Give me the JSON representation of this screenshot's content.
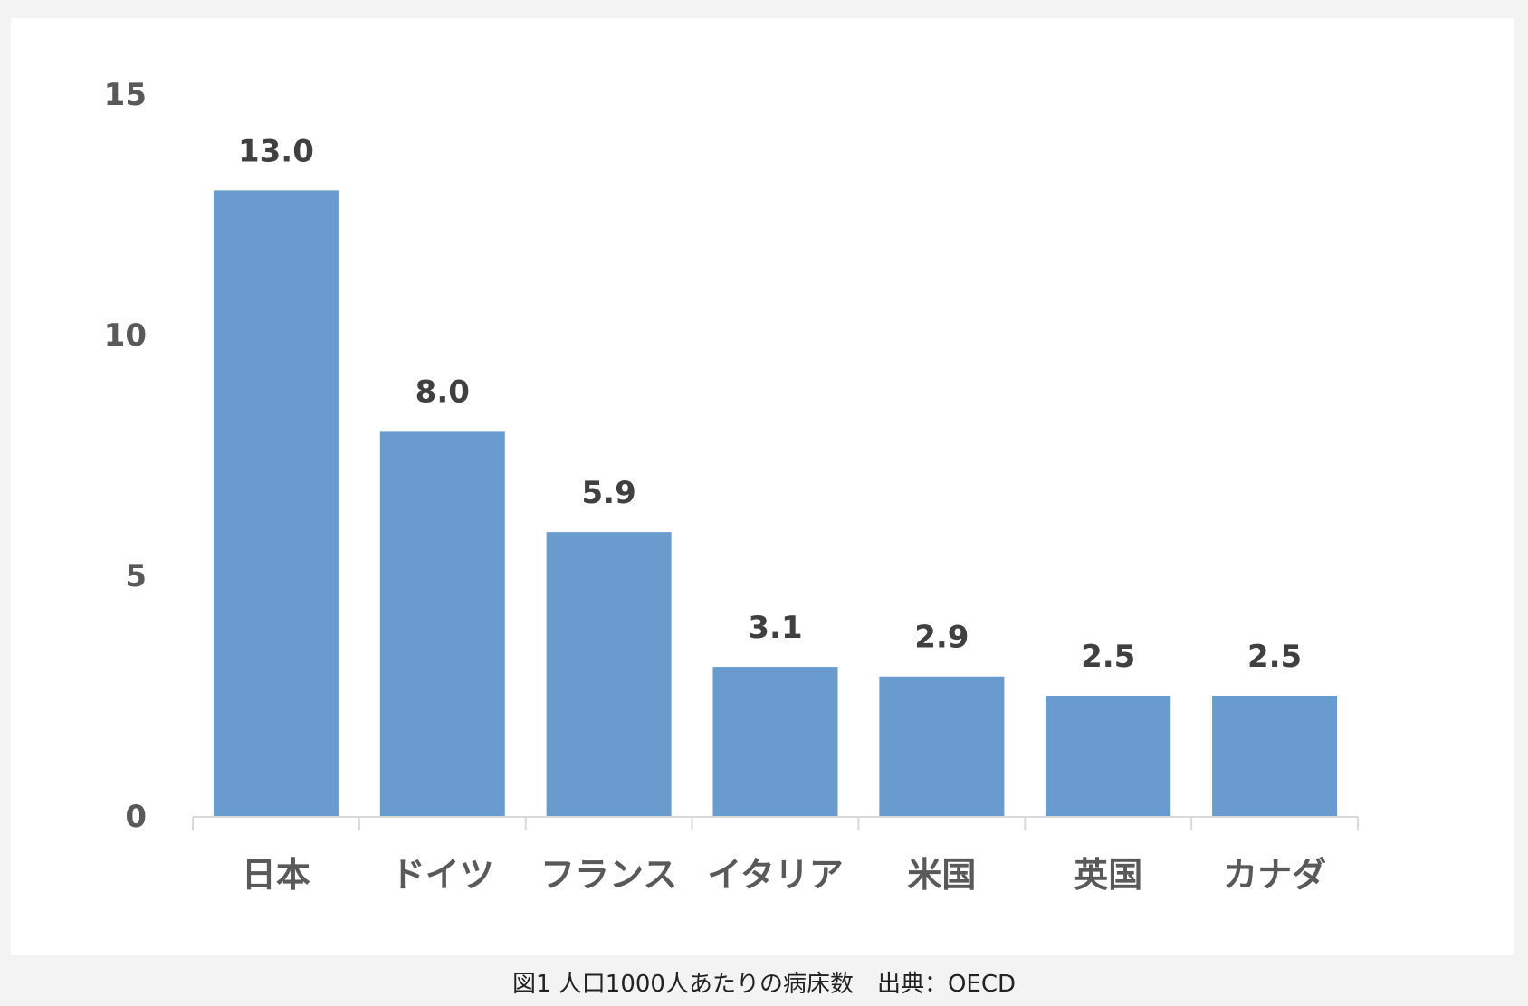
{
  "caption": "図1 人口1000人あたりの病床数　出典：OECD",
  "colors": {
    "bar": "#6a9bcf",
    "axis": "#d9d9d9",
    "tick_text": "#595959",
    "label_text": "#404040"
  },
  "chart_data": {
    "type": "bar",
    "title": "",
    "xlabel": "",
    "ylabel": "",
    "categories": [
      "日本",
      "ドイツ",
      "フランス",
      "イタリア",
      "米国",
      "英国",
      "カナダ"
    ],
    "values": [
      13.0,
      8.0,
      5.9,
      3.1,
      2.9,
      2.5,
      2.5
    ],
    "value_labels": [
      "13.0",
      "8.0",
      "5.9",
      "3.1",
      "2.9",
      "2.5",
      "2.5"
    ],
    "ylim": [
      0,
      15
    ],
    "yticks": [
      0,
      5,
      10,
      15
    ],
    "ytick_labels": [
      "0",
      "5",
      "10",
      "15"
    ],
    "grid": false,
    "legend": "none"
  }
}
